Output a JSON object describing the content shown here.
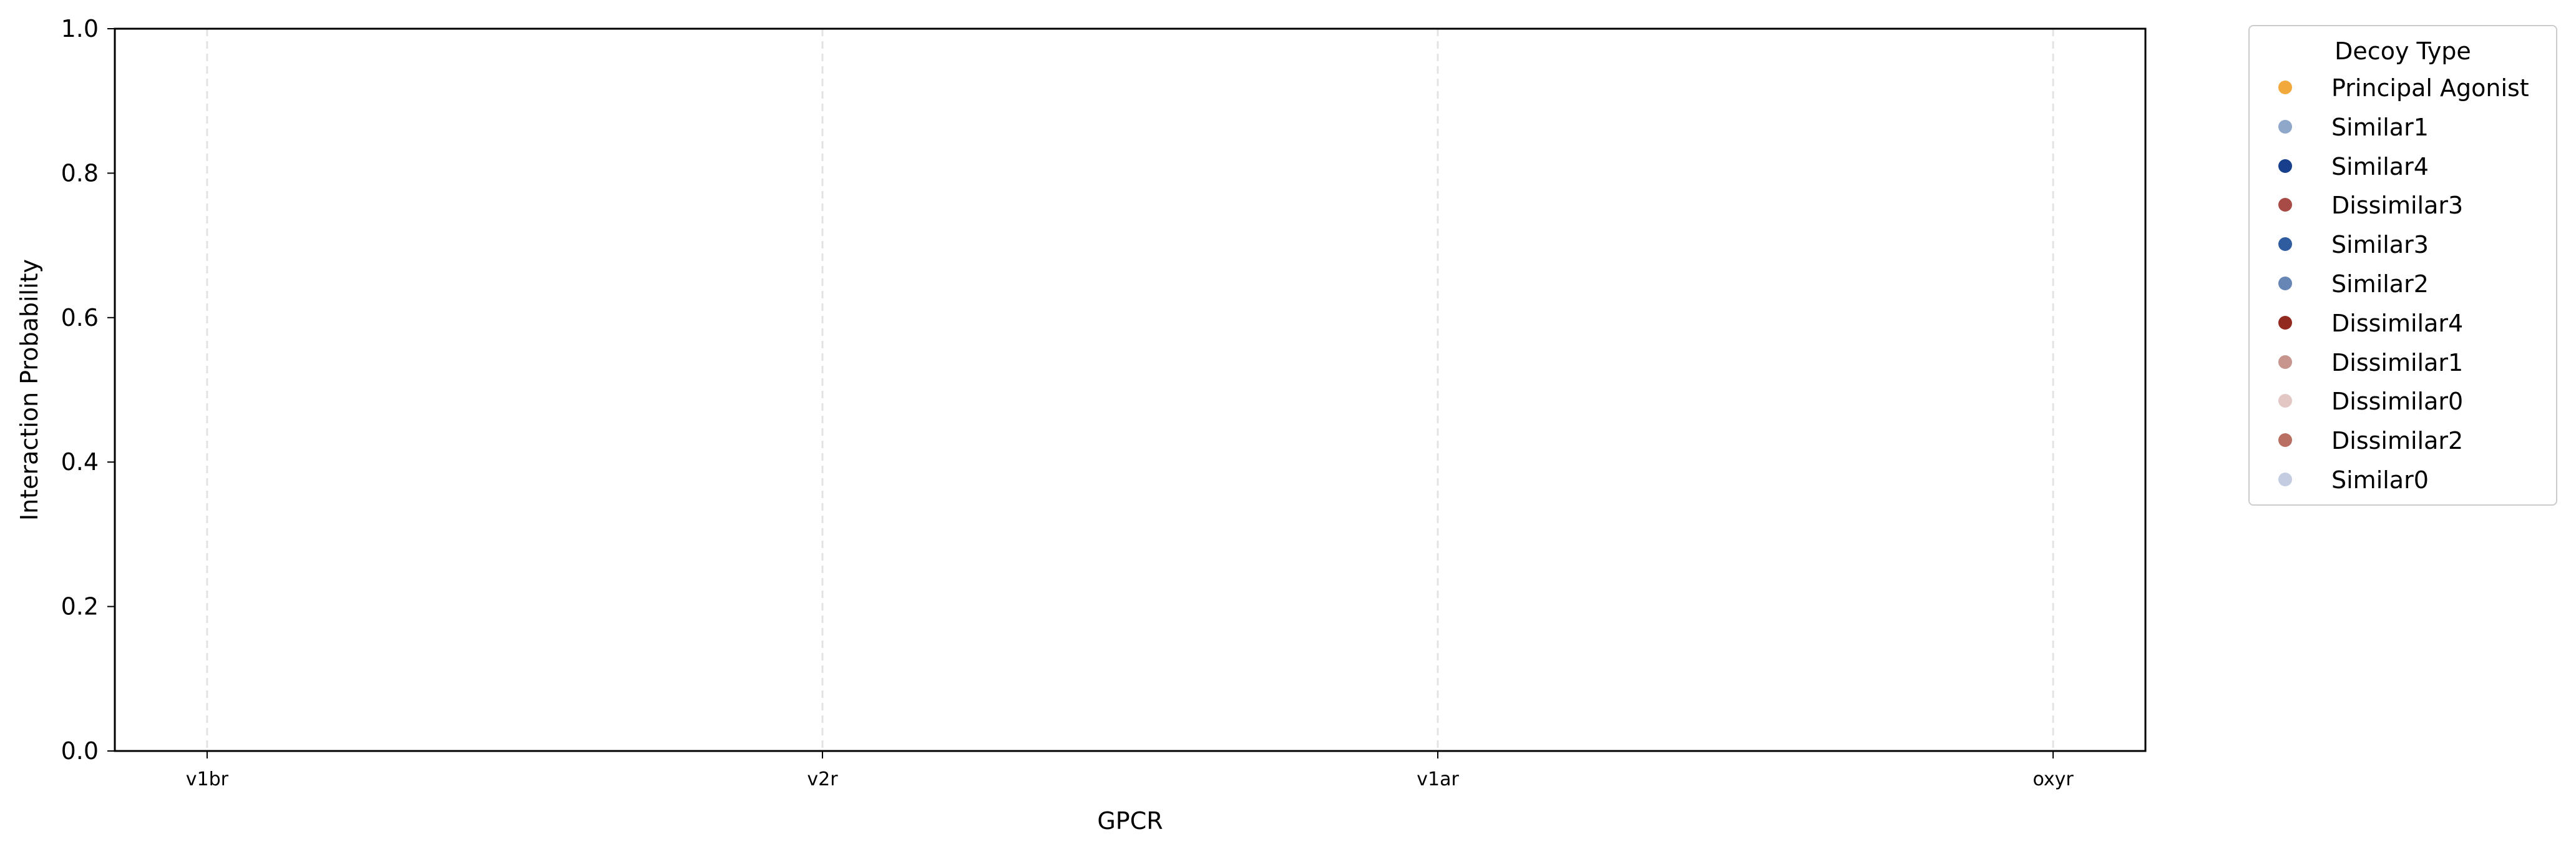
{
  "chart_data": {
    "type": "scatter",
    "title": "",
    "xlabel": "GPCR",
    "ylabel": "Interaction Probability",
    "categories": [
      "v1br",
      "v2r",
      "v1ar",
      "oxyr"
    ],
    "ylim": [
      0.0,
      1.0
    ],
    "yticks": [
      "0.0",
      "0.2",
      "0.4",
      "0.6",
      "0.8",
      "1.0"
    ],
    "grid": "vertical dashed lines at each category",
    "legend": {
      "title": "Decoy Type",
      "placement": "outside upper-right",
      "entries": [
        {
          "name": "Principal Agonist",
          "color": "#f2a93b"
        },
        {
          "name": "Similar1",
          "color": "#8fa7c9"
        },
        {
          "name": "Similar4",
          "color": "#173f8c"
        },
        {
          "name": "Dissimilar3",
          "color": "#a84a45"
        },
        {
          "name": "Similar3",
          "color": "#2f5c9e"
        },
        {
          "name": "Similar2",
          "color": "#6786b5"
        },
        {
          "name": "Dissimilar4",
          "color": "#932a1f"
        },
        {
          "name": "Dissimilar1",
          "color": "#c7958d"
        },
        {
          "name": "Dissimilar0",
          "color": "#e3c7c4"
        },
        {
          "name": "Dissimilar2",
          "color": "#b97063"
        },
        {
          "name": "Similar0",
          "color": "#c3cce0"
        }
      ]
    },
    "series": []
  }
}
